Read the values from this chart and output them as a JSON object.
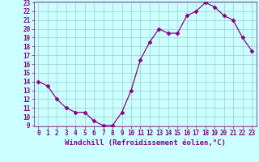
{
  "x_data": [
    0,
    1,
    2,
    3,
    4,
    5,
    6,
    7,
    8,
    9,
    10,
    11,
    12,
    13,
    14,
    15,
    16,
    17,
    18,
    19,
    20,
    21,
    22,
    23
  ],
  "y_data": [
    14,
    13.5,
    12,
    11,
    10.5,
    10.5,
    9.5,
    9,
    9,
    10.5,
    13,
    16.5,
    18.5,
    20,
    19.5,
    19.5,
    21.5,
    22,
    23,
    22.5,
    21.5,
    21,
    19,
    17.5
  ],
  "line_color": "#880088",
  "marker": "D",
  "marker_size": 2.5,
  "bg_color": "#ccffff",
  "grid_color": "#99cccc",
  "xlabel": "Windchill (Refroidissement éolien,°C)",
  "ylim_min": 9,
  "ylim_max": 23,
  "xlim_min": -0.5,
  "xlim_max": 23.5,
  "yticks": [
    9,
    10,
    11,
    12,
    13,
    14,
    15,
    16,
    17,
    18,
    19,
    20,
    21,
    22,
    23
  ],
  "xticks": [
    0,
    1,
    2,
    3,
    4,
    5,
    6,
    7,
    8,
    9,
    10,
    11,
    12,
    13,
    14,
    15,
    16,
    17,
    18,
    19,
    20,
    21,
    22,
    23
  ],
  "tick_color": "#880088",
  "tick_fontsize": 5.5,
  "xlabel_fontsize": 6.5,
  "xlabel_color": "#880088",
  "linewidth": 0.9
}
